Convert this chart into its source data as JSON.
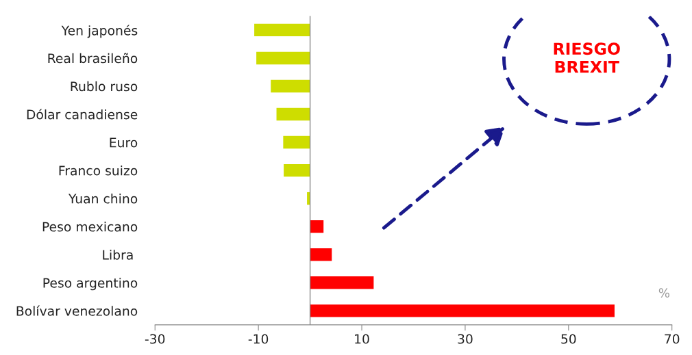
{
  "chart_data": {
    "type": "bar",
    "orientation": "horizontal",
    "categories": [
      "Yen japonés",
      "Real brasileño",
      "Rublo ruso",
      "Dólar canadiense",
      "Euro",
      "Franco suizo",
      "Yuan chino",
      "Peso mexicano",
      "Libra ",
      "Peso argentino",
      "Bolívar venezolano"
    ],
    "values": [
      -10.8,
      -10.4,
      -7.6,
      -6.5,
      -5.2,
      -5.1,
      -0.6,
      2.6,
      4.2,
      12.3,
      58.9
    ],
    "colors": [
      "#cedd00",
      "#cedd00",
      "#cedd00",
      "#cedd00",
      "#cedd00",
      "#cedd00",
      "#cedd00",
      "#ff0000",
      "#ff0000",
      "#ff0000",
      "#ff0000"
    ],
    "xlim": [
      -30,
      70
    ],
    "xticks": [
      -30,
      -10,
      10,
      30,
      50,
      70
    ],
    "annotations": [
      "RIESGO\nBREXIT",
      "%"
    ],
    "grid": false,
    "legend": false
  }
}
